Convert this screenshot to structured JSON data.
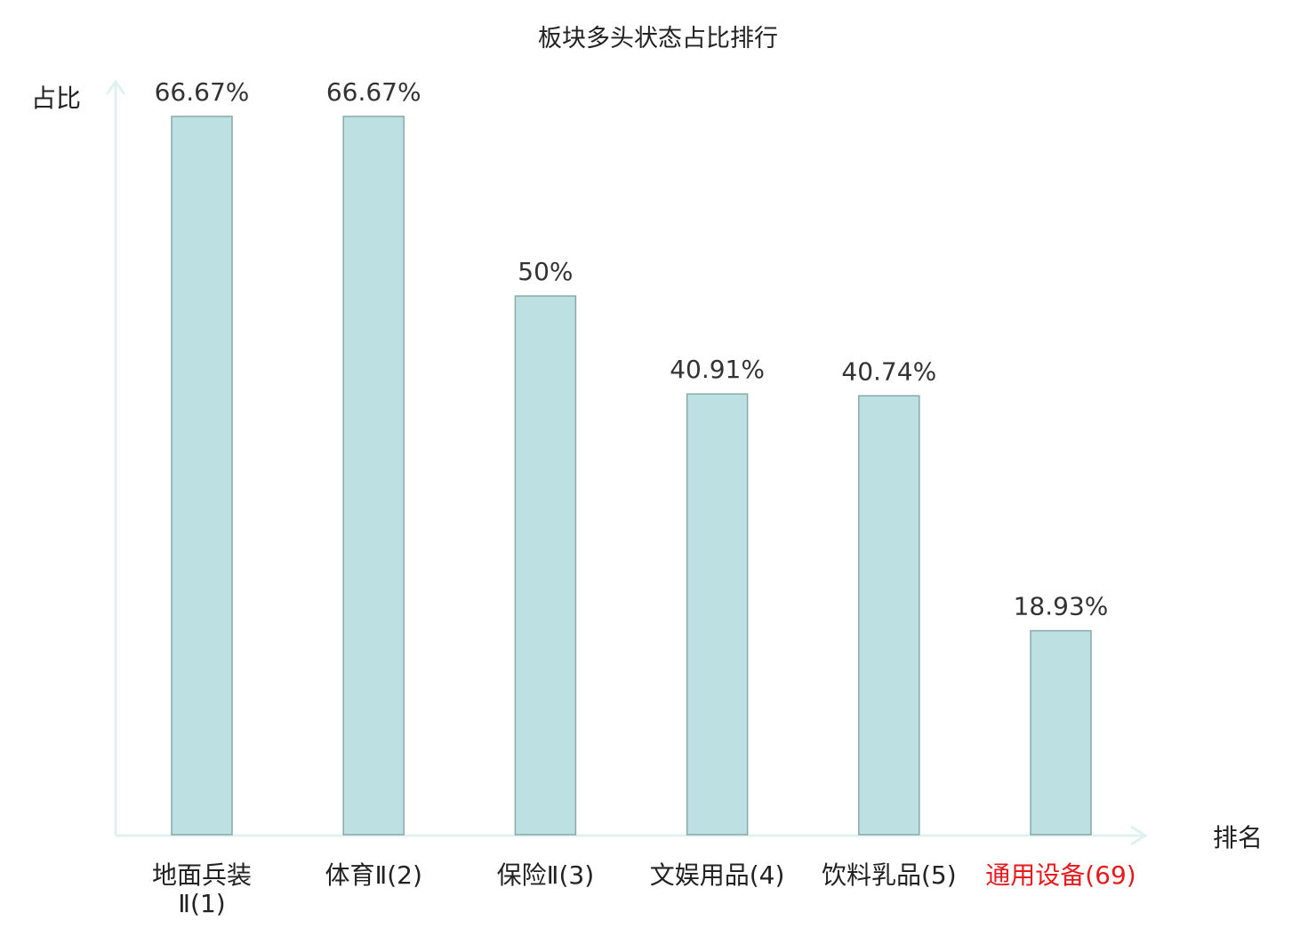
{
  "chart_data": {
    "type": "bar",
    "title": "板块多头状态占比排行",
    "ylabel": "占比",
    "xlabel": "排名",
    "categories": [
      "地面兵装Ⅱ(1)",
      "体育Ⅱ(2)",
      "保险Ⅱ(3)",
      "文娱用品(4)",
      "饮料乳品(5)",
      "通用设备(69)"
    ],
    "category_lines": [
      [
        "地面兵装",
        "Ⅱ(1)"
      ],
      [
        "体育Ⅱ(2)"
      ],
      [
        "保险Ⅱ(3)"
      ],
      [
        "文娱用品(4)"
      ],
      [
        "饮料乳品(5)"
      ],
      [
        "通用设备(69)"
      ]
    ],
    "category_highlight": [
      false,
      false,
      false,
      false,
      false,
      true
    ],
    "values": [
      66.67,
      66.67,
      50,
      40.91,
      40.74,
      18.93
    ],
    "data_labels": [
      "66.67%",
      "66.67%",
      "50%",
      "40.91%",
      "40.74%",
      "18.93%"
    ],
    "ylim": [
      0,
      66.67
    ],
    "grid": false,
    "colors": {
      "bar_fill": "#bde0e3",
      "bar_stroke": "#8aa9a9",
      "axis": "#dff2ef",
      "label": "#333333",
      "highlight": "#e8191c"
    }
  }
}
